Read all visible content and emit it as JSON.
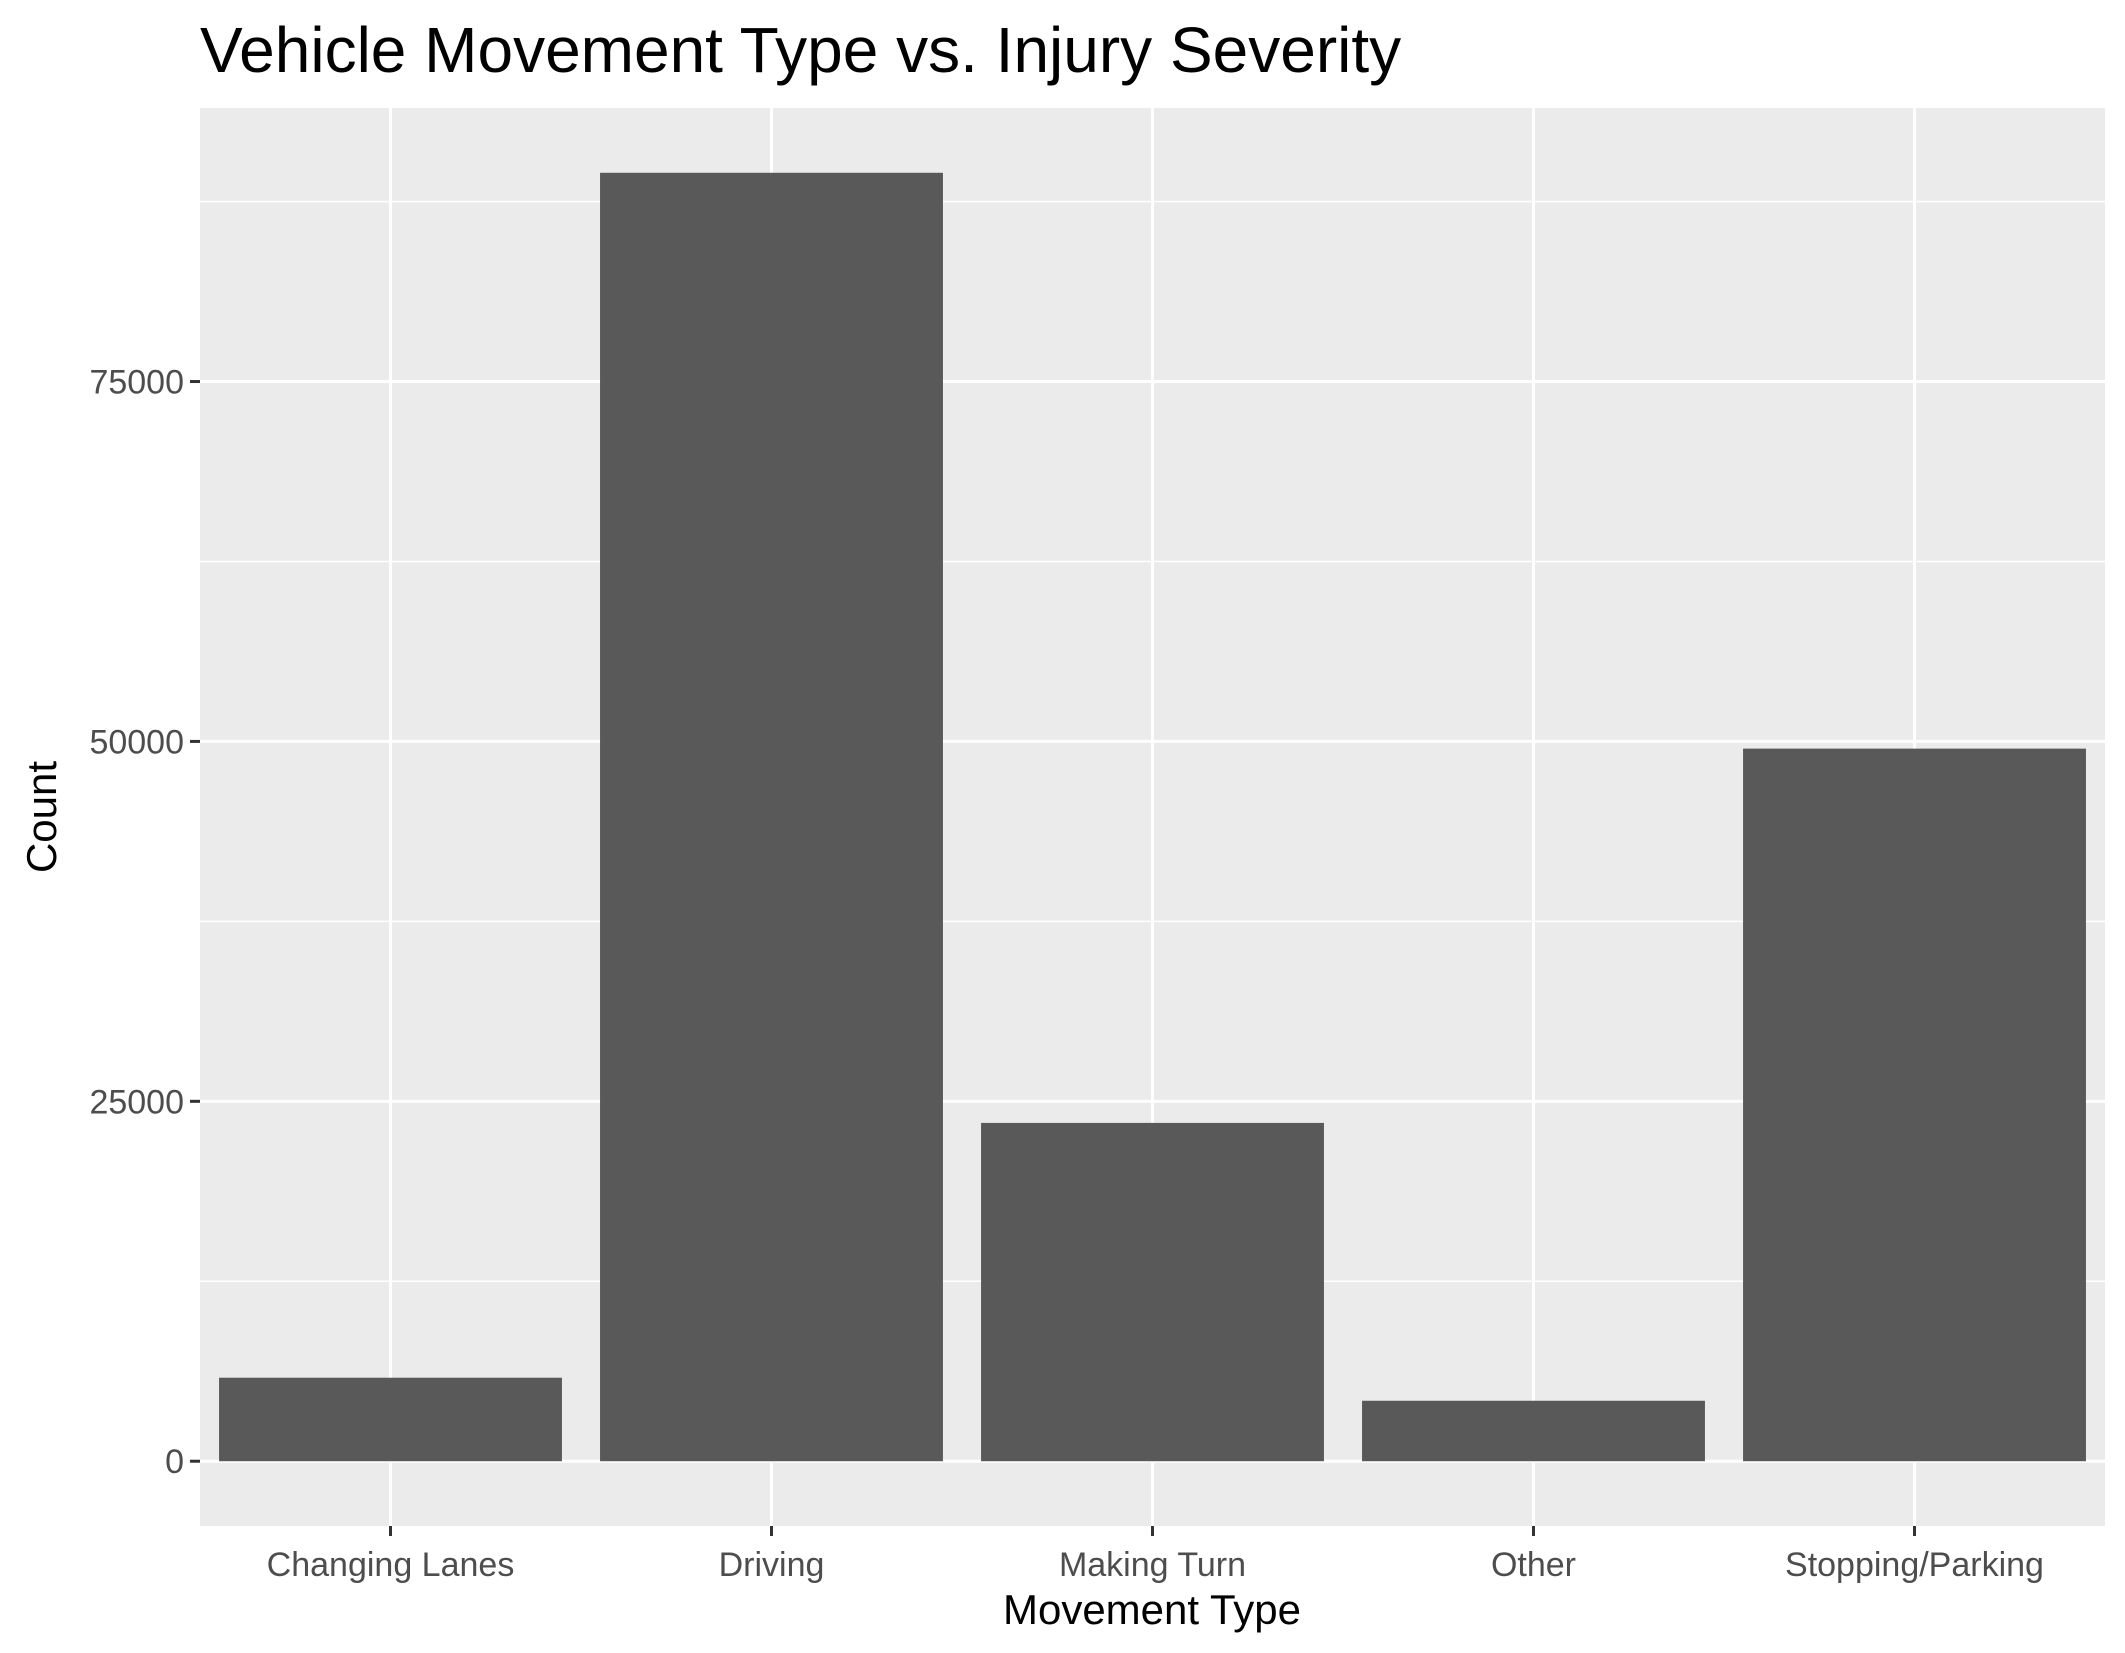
{
  "chart_data": {
    "type": "bar",
    "title": "Vehicle Movement Type vs. Injury Severity",
    "xlabel": "Movement Type",
    "ylabel": "Count",
    "categories": [
      "Changing Lanes",
      "Driving",
      "Making Turn",
      "Other",
      "Stopping/Parking"
    ],
    "values": [
      5800,
      89500,
      23500,
      4200,
      49500
    ],
    "yticks": [
      0,
      25000,
      50000,
      75000
    ],
    "ytick_labels": [
      "0",
      "25000",
      "50000",
      "75000"
    ],
    "ylim": [
      -4500,
      94000
    ],
    "grid": true,
    "legend": "none",
    "colors": {
      "bar": "#595959",
      "panel": "#ebebeb",
      "grid": "#ffffff",
      "tick": "#333333"
    }
  }
}
